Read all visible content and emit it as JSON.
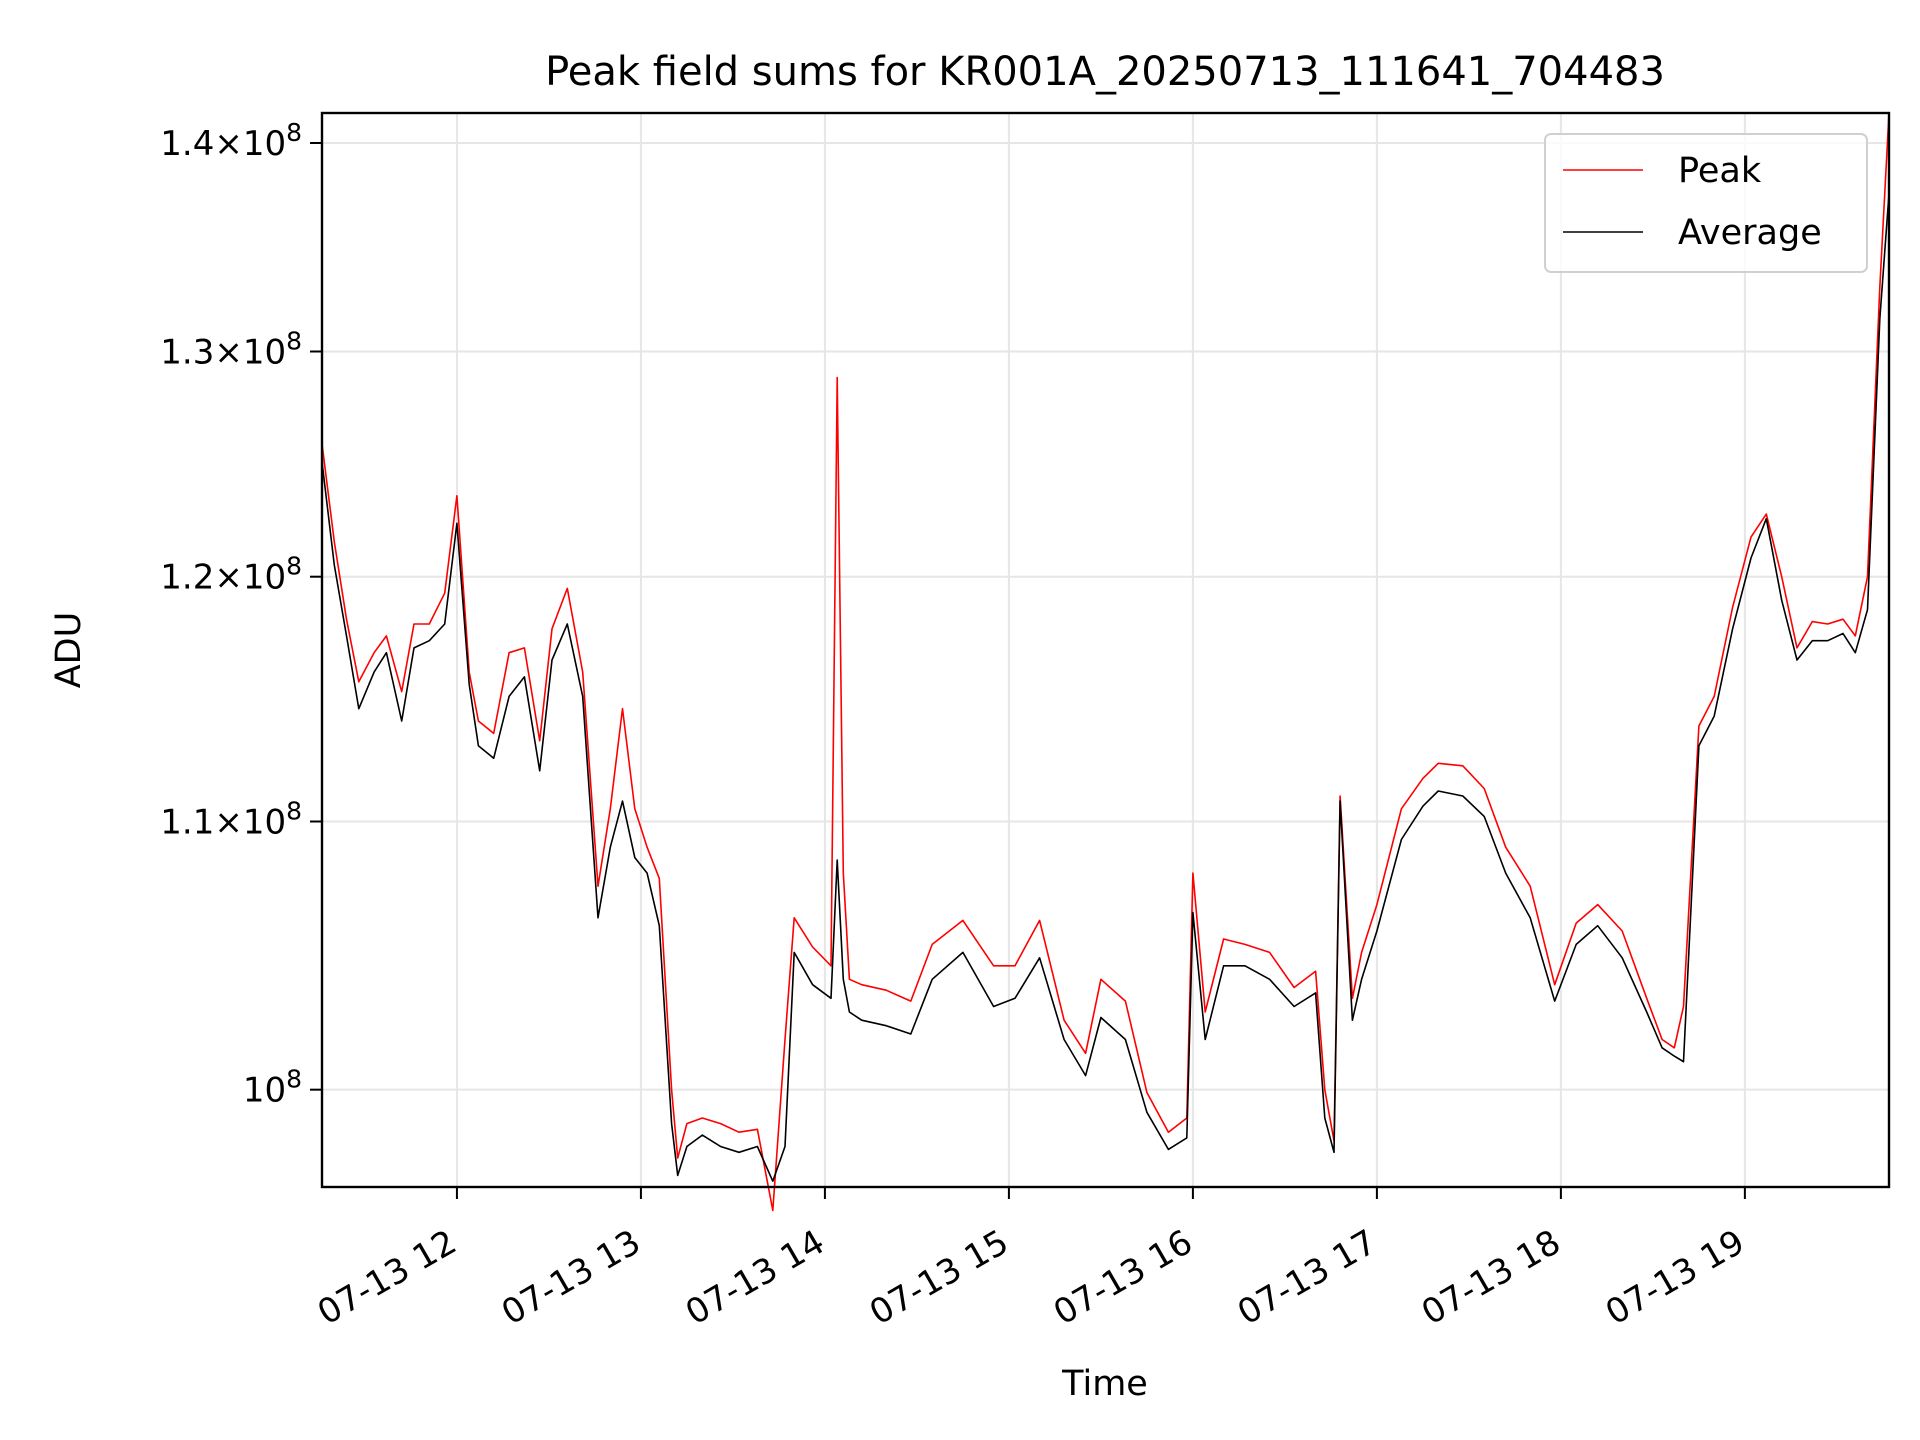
{
  "chart_data": {
    "type": "line",
    "title": "Peak field sums for KR001A_20250713_111641_704483",
    "xlabel": "Time",
    "ylabel": "ADU",
    "y_scale": "log",
    "ylim": [
      96600000,
      141500000
    ],
    "xlim": [
      "2025-07-13 11:16",
      "2025-07-13 19:47"
    ],
    "grid": true,
    "legend": "top-right",
    "x_ticks": [
      {
        "value": "2025-07-13 12:00",
        "label": "07-13 12"
      },
      {
        "value": "2025-07-13 13:00",
        "label": "07-13 13"
      },
      {
        "value": "2025-07-13 14:00",
        "label": "07-13 14"
      },
      {
        "value": "2025-07-13 15:00",
        "label": "07-13 15"
      },
      {
        "value": "2025-07-13 16:00",
        "label": "07-13 16"
      },
      {
        "value": "2025-07-13 17:00",
        "label": "07-13 17"
      },
      {
        "value": "2025-07-13 18:00",
        "label": "07-13 18"
      },
      {
        "value": "2025-07-13 19:00",
        "label": "07-13 19"
      }
    ],
    "y_ticks": [
      {
        "value": 100000000,
        "mantissa": "",
        "exponent": "8"
      },
      {
        "value": 110000000,
        "mantissa": "1.1",
        "exponent": "8"
      },
      {
        "value": 120000000,
        "mantissa": "1.2",
        "exponent": "8"
      },
      {
        "value": 130000000,
        "mantissa": "1.3",
        "exponent": "8"
      },
      {
        "value": 140000000,
        "mantissa": "1.4",
        "exponent": "8"
      }
    ],
    "series": [
      {
        "name": "Peak",
        "color": "#ff0000",
        "x": [
          "2025-07-13 11:16",
          "2025-07-13 11:20",
          "2025-07-13 11:24",
          "2025-07-13 11:28",
          "2025-07-13 11:33",
          "2025-07-13 11:37",
          "2025-07-13 11:42",
          "2025-07-13 11:46",
          "2025-07-13 11:51",
          "2025-07-13 11:56",
          "2025-07-13 12:00",
          "2025-07-13 12:04",
          "2025-07-13 12:07",
          "2025-07-13 12:12",
          "2025-07-13 12:17",
          "2025-07-13 12:22",
          "2025-07-13 12:27",
          "2025-07-13 12:31",
          "2025-07-13 12:36",
          "2025-07-13 12:41",
          "2025-07-13 12:46",
          "2025-07-13 12:50",
          "2025-07-13 12:54",
          "2025-07-13 12:58",
          "2025-07-13 13:02",
          "2025-07-13 13:06",
          "2025-07-13 13:10",
          "2025-07-13 13:12",
          "2025-07-13 13:15",
          "2025-07-13 13:20",
          "2025-07-13 13:26",
          "2025-07-13 13:32",
          "2025-07-13 13:38",
          "2025-07-13 13:43",
          "2025-07-13 13:47",
          "2025-07-13 13:50",
          "2025-07-13 13:56",
          "2025-07-13 14:02",
          "2025-07-13 14:04",
          "2025-07-13 14:06",
          "2025-07-13 14:08",
          "2025-07-13 14:12",
          "2025-07-13 14:20",
          "2025-07-13 14:28",
          "2025-07-13 14:35",
          "2025-07-13 14:45",
          "2025-07-13 14:55",
          "2025-07-13 15:02",
          "2025-07-13 15:10",
          "2025-07-13 15:18",
          "2025-07-13 15:25",
          "2025-07-13 15:30",
          "2025-07-13 15:38",
          "2025-07-13 15:45",
          "2025-07-13 15:52",
          "2025-07-13 15:58",
          "2025-07-13 16:00",
          "2025-07-13 16:04",
          "2025-07-13 16:10",
          "2025-07-13 16:17",
          "2025-07-13 16:25",
          "2025-07-13 16:33",
          "2025-07-13 16:40",
          "2025-07-13 16:43",
          "2025-07-13 16:46",
          "2025-07-13 16:48",
          "2025-07-13 16:52",
          "2025-07-13 16:55",
          "2025-07-13 17:00",
          "2025-07-13 17:08",
          "2025-07-13 17:15",
          "2025-07-13 17:20",
          "2025-07-13 17:28",
          "2025-07-13 17:35",
          "2025-07-13 17:42",
          "2025-07-13 17:50",
          "2025-07-13 17:58",
          "2025-07-13 18:05",
          "2025-07-13 18:12",
          "2025-07-13 18:20",
          "2025-07-13 18:28",
          "2025-07-13 18:33",
          "2025-07-13 18:37",
          "2025-07-13 18:40",
          "2025-07-13 18:45",
          "2025-07-13 18:50",
          "2025-07-13 18:56",
          "2025-07-13 19:02",
          "2025-07-13 19:07",
          "2025-07-13 19:12",
          "2025-07-13 19:17",
          "2025-07-13 19:22",
          "2025-07-13 19:27",
          "2025-07-13 19:32",
          "2025-07-13 19:36",
          "2025-07-13 19:40",
          "2025-07-13 19:44",
          "2025-07-13 19:47"
        ],
        "values": [
          125800000,
          121500000,
          118200000,
          115600000,
          116800000,
          117500000,
          115200000,
          118000000,
          118000000,
          119300000,
          123500000,
          116000000,
          114000000,
          113500000,
          116800000,
          117000000,
          113200000,
          117800000,
          119500000,
          116000000,
          107500000,
          110500000,
          114500000,
          110500000,
          109000000,
          107800000,
          100000000,
          97600000,
          98800000,
          99000000,
          98800000,
          98500000,
          98600000,
          95800000,
          101800000,
          106300000,
          105200000,
          104500000,
          128800000,
          108000000,
          104000000,
          103800000,
          103600000,
          103200000,
          105300000,
          106200000,
          104500000,
          104500000,
          106200000,
          102500000,
          101300000,
          104000000,
          103200000,
          99900000,
          98500000,
          99000000,
          108000000,
          102800000,
          105500000,
          105300000,
          105000000,
          103700000,
          104300000,
          100000000,
          98200000,
          111000000,
          103300000,
          105000000,
          106800000,
          110500000,
          111700000,
          112300000,
          112200000,
          111300000,
          109000000,
          107500000,
          103800000,
          106100000,
          106800000,
          105800000,
          103300000,
          101800000,
          101500000,
          103000000,
          113800000,
          115000000,
          118700000,
          121700000,
          122700000,
          120000000,
          117000000,
          118100000,
          118000000,
          118200000,
          117500000,
          120000000,
          133000000,
          141500000
        ]
      },
      {
        "name": "Average",
        "color": "#000000",
        "x": [
          "2025-07-13 11:16",
          "2025-07-13 11:20",
          "2025-07-13 11:24",
          "2025-07-13 11:28",
          "2025-07-13 11:33",
          "2025-07-13 11:37",
          "2025-07-13 11:42",
          "2025-07-13 11:46",
          "2025-07-13 11:51",
          "2025-07-13 11:56",
          "2025-07-13 12:00",
          "2025-07-13 12:04",
          "2025-07-13 12:07",
          "2025-07-13 12:12",
          "2025-07-13 12:17",
          "2025-07-13 12:22",
          "2025-07-13 12:27",
          "2025-07-13 12:31",
          "2025-07-13 12:36",
          "2025-07-13 12:41",
          "2025-07-13 12:46",
          "2025-07-13 12:50",
          "2025-07-13 12:54",
          "2025-07-13 12:58",
          "2025-07-13 13:02",
          "2025-07-13 13:06",
          "2025-07-13 13:10",
          "2025-07-13 13:12",
          "2025-07-13 13:15",
          "2025-07-13 13:20",
          "2025-07-13 13:26",
          "2025-07-13 13:32",
          "2025-07-13 13:38",
          "2025-07-13 13:43",
          "2025-07-13 13:47",
          "2025-07-13 13:50",
          "2025-07-13 13:56",
          "2025-07-13 14:02",
          "2025-07-13 14:04",
          "2025-07-13 14:06",
          "2025-07-13 14:08",
          "2025-07-13 14:12",
          "2025-07-13 14:20",
          "2025-07-13 14:28",
          "2025-07-13 14:35",
          "2025-07-13 14:45",
          "2025-07-13 14:55",
          "2025-07-13 15:02",
          "2025-07-13 15:10",
          "2025-07-13 15:18",
          "2025-07-13 15:25",
          "2025-07-13 15:30",
          "2025-07-13 15:38",
          "2025-07-13 15:45",
          "2025-07-13 15:52",
          "2025-07-13 15:58",
          "2025-07-13 16:00",
          "2025-07-13 16:04",
          "2025-07-13 16:10",
          "2025-07-13 16:17",
          "2025-07-13 16:25",
          "2025-07-13 16:33",
          "2025-07-13 16:40",
          "2025-07-13 16:43",
          "2025-07-13 16:46",
          "2025-07-13 16:48",
          "2025-07-13 16:52",
          "2025-07-13 16:55",
          "2025-07-13 17:00",
          "2025-07-13 17:08",
          "2025-07-13 17:15",
          "2025-07-13 17:20",
          "2025-07-13 17:28",
          "2025-07-13 17:35",
          "2025-07-13 17:42",
          "2025-07-13 17:50",
          "2025-07-13 17:58",
          "2025-07-13 18:05",
          "2025-07-13 18:12",
          "2025-07-13 18:20",
          "2025-07-13 18:28",
          "2025-07-13 18:33",
          "2025-07-13 18:37",
          "2025-07-13 18:40",
          "2025-07-13 18:45",
          "2025-07-13 18:50",
          "2025-07-13 18:56",
          "2025-07-13 19:02",
          "2025-07-13 19:07",
          "2025-07-13 19:12",
          "2025-07-13 19:17",
          "2025-07-13 19:22",
          "2025-07-13 19:27",
          "2025-07-13 19:32",
          "2025-07-13 19:36",
          "2025-07-13 19:40",
          "2025-07-13 19:44",
          "2025-07-13 19:47"
        ],
        "values": [
          125000000,
          120500000,
          117500000,
          114500000,
          116000000,
          116800000,
          114000000,
          117000000,
          117300000,
          118000000,
          122300000,
          115500000,
          113000000,
          112500000,
          115000000,
          115800000,
          112000000,
          116500000,
          118000000,
          115000000,
          106300000,
          109000000,
          110800000,
          108600000,
          108000000,
          106000000,
          98800000,
          97000000,
          98000000,
          98400000,
          98000000,
          97800000,
          98000000,
          96800000,
          98000000,
          105000000,
          103800000,
          103300000,
          108500000,
          104000000,
          102800000,
          102500000,
          102300000,
          102000000,
          104000000,
          105000000,
          103000000,
          103300000,
          104800000,
          101800000,
          100500000,
          102600000,
          101800000,
          99200000,
          97900000,
          98300000,
          106500000,
          101800000,
          104500000,
          104500000,
          104000000,
          103000000,
          103500000,
          99000000,
          97800000,
          110800000,
          102500000,
          104000000,
          105800000,
          109300000,
          110600000,
          111200000,
          111000000,
          110200000,
          108000000,
          106300000,
          103200000,
          105300000,
          106000000,
          104800000,
          102800000,
          101500000,
          101200000,
          101000000,
          113000000,
          114200000,
          117800000,
          120800000,
          122500000,
          119000000,
          116500000,
          117300000,
          117300000,
          117600000,
          116800000,
          118600000,
          131500000,
          137500000
        ]
      }
    ]
  }
}
